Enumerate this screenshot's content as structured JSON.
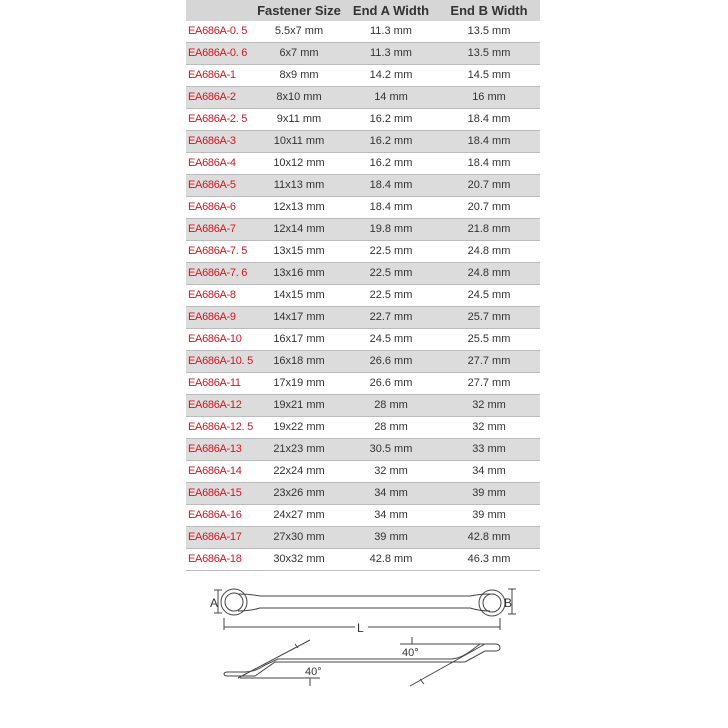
{
  "table": {
    "headers": [
      "",
      "Fastener Size",
      "End A Width",
      "End B Width"
    ],
    "rows": [
      [
        "EA686A-0. 5",
        "5.5x7 mm",
        "11.3 mm",
        "13.5 mm"
      ],
      [
        "EA686A-0. 6",
        "6x7 mm",
        "11.3 mm",
        "13.5 mm"
      ],
      [
        "EA686A-1",
        "8x9 mm",
        "14.2 mm",
        "14.5 mm"
      ],
      [
        "EA686A-2",
        "8x10 mm",
        "14 mm",
        "16 mm"
      ],
      [
        "EA686A-2. 5",
        "9x11 mm",
        "16.2 mm",
        "18.4 mm"
      ],
      [
        "EA686A-3",
        "10x11 mm",
        "16.2 mm",
        "18.4 mm"
      ],
      [
        "EA686A-4",
        "10x12 mm",
        "16.2 mm",
        "18.4 mm"
      ],
      [
        "EA686A-5",
        "11x13 mm",
        "18.4 mm",
        "20.7 mm"
      ],
      [
        "EA686A-6",
        "12x13 mm",
        "18.4 mm",
        "20.7 mm"
      ],
      [
        "EA686A-7",
        "12x14 mm",
        "19.8 mm",
        "21.8 mm"
      ],
      [
        "EA686A-7. 5",
        "13x15 mm",
        "22.5 mm",
        "24.8 mm"
      ],
      [
        "EA686A-7. 6",
        "13x16 mm",
        "22.5 mm",
        "24.8 mm"
      ],
      [
        "EA686A-8",
        "14x15 mm",
        "22.5 mm",
        "24.5 mm"
      ],
      [
        "EA686A-9",
        "14x17 mm",
        "22.7 mm",
        "25.7 mm"
      ],
      [
        "EA686A-10",
        "16x17 mm",
        "24.5 mm",
        "25.5 mm"
      ],
      [
        "EA686A-10. 5",
        "16x18 mm",
        "26.6 mm",
        "27.7 mm"
      ],
      [
        "EA686A-11",
        "17x19 mm",
        "26.6 mm",
        "27.7 mm"
      ],
      [
        "EA686A-12",
        "19x21 mm",
        "28 mm",
        "32 mm"
      ],
      [
        "EA686A-12. 5",
        "19x22 mm",
        "28 mm",
        "32 mm"
      ],
      [
        "EA686A-13",
        "21x23 mm",
        "30.5 mm",
        "33 mm"
      ],
      [
        "EA686A-14",
        "22x24 mm",
        "32 mm",
        "34 mm"
      ],
      [
        "EA686A-15",
        "23x26 mm",
        "34 mm",
        "39 mm"
      ],
      [
        "EA686A-16",
        "24x27 mm",
        "34 mm",
        "39 mm"
      ],
      [
        "EA686A-17",
        "27x30 mm",
        "39 mm",
        "42.8 mm"
      ],
      [
        "EA686A-18",
        "30x32 mm",
        "42.8 mm",
        "46.3 mm"
      ]
    ]
  },
  "diagram": {
    "label_a": "A",
    "label_b": "B",
    "label_l": "L",
    "angle_left": "40°",
    "angle_right": "40°"
  },
  "colors": {
    "code": "#e0101a",
    "header_bg": "#d6d6d6",
    "stripe": "#dcdcdc"
  }
}
